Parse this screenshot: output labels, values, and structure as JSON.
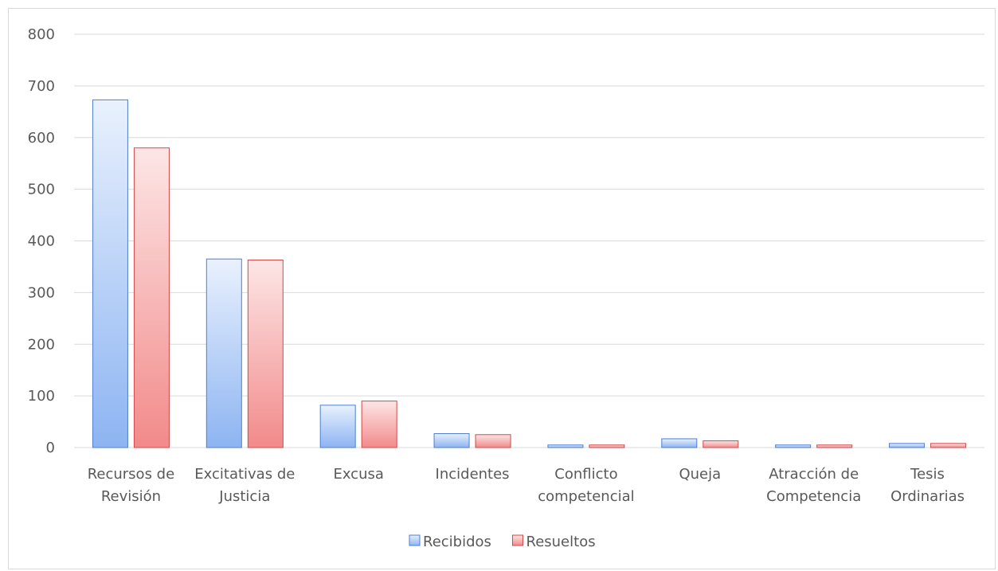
{
  "chart_data": {
    "type": "bar",
    "title": "",
    "categories": [
      [
        "Recursos de",
        "Revisión"
      ],
      [
        "Excitativas de",
        "Justicia"
      ],
      [
        "Excusa"
      ],
      [
        "Incidentes"
      ],
      [
        "Conflicto",
        "competencial"
      ],
      [
        "Queja"
      ],
      [
        "Atracción de",
        "Competencia"
      ],
      [
        "Tesis",
        "Ordinarias"
      ]
    ],
    "series": [
      {
        "name": "Recibidos",
        "values": [
          673,
          365,
          82,
          27,
          5,
          17,
          5,
          8
        ]
      },
      {
        "name": "Resueltos",
        "values": [
          580,
          363,
          90,
          25,
          5,
          13,
          5,
          8
        ]
      }
    ],
    "ylim": [
      0,
      800
    ],
    "yticks": [
      0,
      100,
      200,
      300,
      400,
      500,
      600,
      700,
      800
    ],
    "grid": true,
    "legend_position": "bottom",
    "colors": {
      "Recibidos": {
        "light": "#e9f1fd",
        "dark": "#8db4f2",
        "stroke": "#4f7fd0"
      },
      "Resueltos": {
        "light": "#fde6e6",
        "dark": "#f28a8a",
        "stroke": "#cf4b4b"
      },
      "grid": "#d9d9d9",
      "text": "#595959"
    }
  }
}
